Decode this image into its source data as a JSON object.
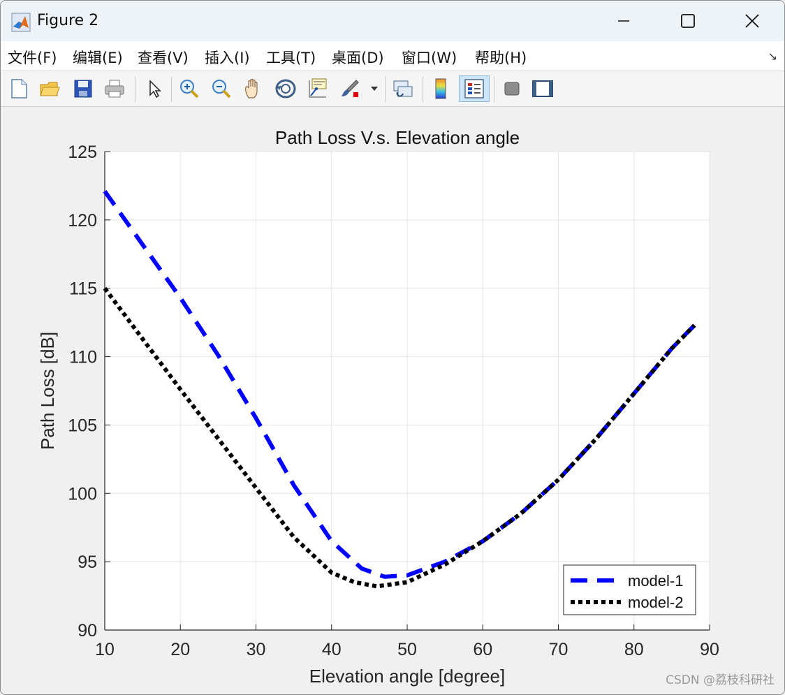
{
  "window": {
    "title": "Figure 2",
    "minimize_icon": "minimize-icon",
    "maximize_icon": "maximize-icon",
    "close_icon": "close-icon"
  },
  "menu": {
    "items": [
      {
        "label": "文件(F)"
      },
      {
        "label": "编辑(E)"
      },
      {
        "label": "查看(V)"
      },
      {
        "label": "插入(I)"
      },
      {
        "label": "工具(T)"
      },
      {
        "label": "桌面(D)"
      },
      {
        "label": "窗口(W)"
      },
      {
        "label": "帮助(H)"
      }
    ]
  },
  "toolbar": {
    "icons": [
      "new-figure-icon",
      "open-icon",
      "save-icon",
      "print-icon",
      "pointer-icon",
      "zoom-in-icon",
      "zoom-out-icon",
      "pan-hand-icon",
      "rotate-3d-icon",
      "data-cursor-icon",
      "brush-icon",
      "brush-dropdown-icon",
      "link-plot-icon",
      "colorbar-icon",
      "legend-icon",
      "hide-plot-tools-icon",
      "show-plot-tools-icon"
    ],
    "active": "legend-icon"
  },
  "watermark": "CSDN @荔枝科研社",
  "chart_data": {
    "type": "line",
    "title": "Path Loss V.s. Elevation angle",
    "xlabel": "Elevation angle [degree]",
    "ylabel": "Path Loss [dB]",
    "xlim": [
      10,
      90
    ],
    "ylim": [
      90,
      125
    ],
    "xticks": [
      10,
      20,
      30,
      40,
      50,
      60,
      70,
      80,
      90
    ],
    "yticks": [
      90,
      95,
      100,
      105,
      110,
      115,
      120,
      125
    ],
    "grid": true,
    "legend_position": "bottom-right",
    "series": [
      {
        "name": "model-1",
        "color": "#0000ff",
        "style": "dashed",
        "x": [
          10,
          15,
          20,
          25,
          30,
          35,
          40,
          44,
          47,
          50,
          55,
          60,
          65,
          70,
          75,
          80,
          85,
          88
        ],
        "y": [
          122.1,
          118.2,
          114.3,
          110.1,
          105.5,
          100.6,
          96.5,
          94.5,
          93.9,
          94.0,
          95.0,
          96.5,
          98.5,
          101.0,
          104.0,
          107.3,
          110.6,
          112.3
        ]
      },
      {
        "name": "model-2",
        "color": "#000000",
        "style": "dotted",
        "x": [
          10,
          15,
          20,
          25,
          30,
          35,
          40,
          43,
          46,
          50,
          55,
          60,
          65,
          70,
          75,
          80,
          85,
          88
        ],
        "y": [
          115.0,
          111.3,
          107.6,
          104.0,
          100.4,
          96.8,
          94.2,
          93.5,
          93.2,
          93.5,
          94.8,
          96.5,
          98.5,
          101.0,
          104.0,
          107.3,
          110.6,
          112.3
        ]
      }
    ]
  }
}
